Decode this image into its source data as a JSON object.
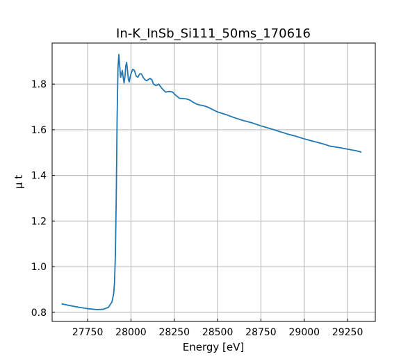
{
  "chart_data": {
    "type": "line",
    "title": "In-K_InSb_Si111_50ms_170616",
    "xlabel": "Energy [eV]",
    "ylabel": "μ t",
    "xlim": [
      27545,
      29410
    ],
    "ylim": [
      0.76,
      1.98
    ],
    "xticks": [
      27750,
      28000,
      28250,
      28500,
      28750,
      29000,
      29250
    ],
    "yticks": [
      0.8,
      1.0,
      1.2,
      1.4,
      1.6,
      1.8
    ],
    "xtick_labels": [
      "27750",
      "28000",
      "28250",
      "28500",
      "28750",
      "29000",
      "29250"
    ],
    "ytick_labels": [
      "0.8",
      "1.0",
      "1.2",
      "1.4",
      "1.6",
      "1.8"
    ],
    "grid": true,
    "line_color": "#1f77b4",
    "series": [
      {
        "x": [
          27600,
          27650,
          27700,
          27750,
          27800,
          27840,
          27870,
          27890,
          27900,
          27905,
          27910,
          27915,
          27920,
          27925,
          27930,
          27935,
          27940,
          27945,
          27950,
          27955,
          27960,
          27965,
          27970,
          27975,
          27980,
          27985,
          27990,
          27995,
          28000,
          28010,
          28020,
          28030,
          28040,
          28050,
          28060,
          28070,
          28080,
          28090,
          28100,
          28110,
          28120,
          28130,
          28140,
          28150,
          28160,
          28170,
          28180,
          28200,
          28220,
          28240,
          28260,
          28280,
          28300,
          28320,
          28340,
          28360,
          28380,
          28400,
          28420,
          28440,
          28460,
          28480,
          28500,
          28550,
          28600,
          28650,
          28700,
          28750,
          28800,
          28850,
          28900,
          28950,
          29000,
          29050,
          29100,
          29150,
          29200,
          29250,
          29300,
          29330
        ],
        "y": [
          0.837,
          0.829,
          0.822,
          0.816,
          0.812,
          0.813,
          0.822,
          0.845,
          0.88,
          0.93,
          1.05,
          1.3,
          1.65,
          1.87,
          1.93,
          1.88,
          1.83,
          1.845,
          1.86,
          1.83,
          1.805,
          1.83,
          1.88,
          1.895,
          1.86,
          1.82,
          1.81,
          1.83,
          1.845,
          1.865,
          1.86,
          1.835,
          1.83,
          1.845,
          1.845,
          1.83,
          1.82,
          1.815,
          1.82,
          1.825,
          1.82,
          1.8,
          1.795,
          1.795,
          1.8,
          1.79,
          1.78,
          1.765,
          1.768,
          1.765,
          1.75,
          1.738,
          1.737,
          1.735,
          1.73,
          1.72,
          1.712,
          1.708,
          1.705,
          1.7,
          1.693,
          1.685,
          1.678,
          1.666,
          1.652,
          1.64,
          1.63,
          1.617,
          1.606,
          1.594,
          1.582,
          1.572,
          1.56,
          1.55,
          1.54,
          1.528,
          1.522,
          1.515,
          1.508,
          1.502
        ]
      }
    ]
  }
}
